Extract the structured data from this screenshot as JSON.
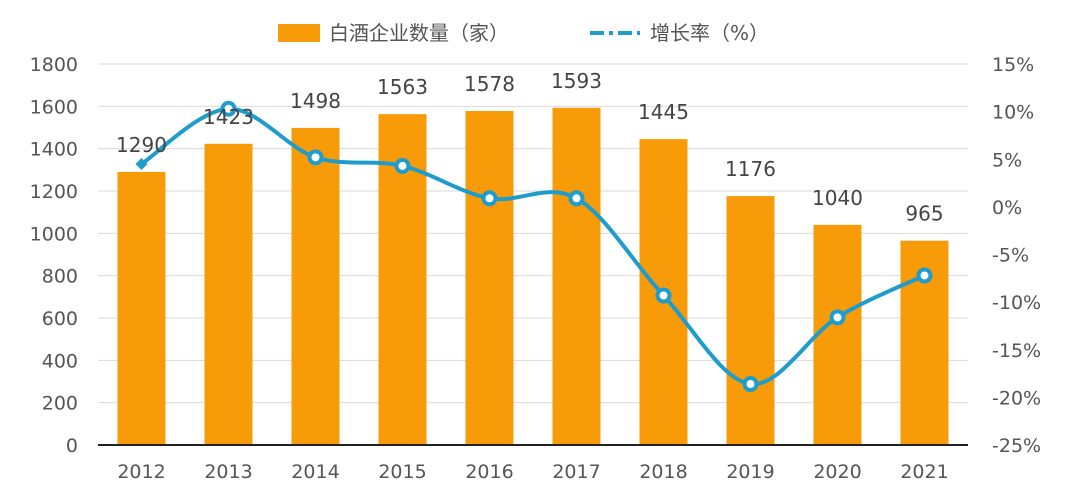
{
  "chart_data": {
    "type": "bar",
    "categories": [
      "2012",
      "2013",
      "2014",
      "2015",
      "2016",
      "2017",
      "2018",
      "2019",
      "2020",
      "2021"
    ],
    "series": [
      {
        "name": "白酒企业数量（家）",
        "type": "bar",
        "axis": "left",
        "values": [
          1290,
          1423,
          1498,
          1563,
          1578,
          1593,
          1445,
          1176,
          1040,
          965
        ],
        "labels": [
          "1290",
          "1423",
          "1498",
          "1563",
          "1578",
          "1593",
          "1445",
          "1176",
          "1040",
          "965"
        ],
        "color": "#F79B08"
      },
      {
        "name": "增长率（%）",
        "type": "line",
        "axis": "right",
        "values": [
          4.5,
          10.3,
          5.2,
          4.3,
          0.9,
          0.9,
          -9.3,
          -18.6,
          -11.6,
          -7.2
        ],
        "color": "#1E9CCB"
      }
    ],
    "y_left": {
      "ylim": [
        0,
        1800
      ],
      "ticks": [
        0,
        200,
        400,
        600,
        800,
        1000,
        1200,
        1400,
        1600,
        1800
      ],
      "tick_labels": [
        "0",
        "200",
        "400",
        "600",
        "800",
        "1000",
        "1200",
        "1400",
        "1600",
        "1800"
      ]
    },
    "y_right": {
      "ylim": [
        -25,
        15
      ],
      "ticks": [
        -25,
        -20,
        -15,
        -10,
        -5,
        0,
        5,
        10,
        15
      ],
      "tick_labels": [
        "-25%",
        "-20%",
        "-15%",
        "-10%",
        "-5%",
        "0%",
        "5%",
        "10%",
        "15%"
      ]
    },
    "grid": true,
    "legend_position": "top"
  }
}
